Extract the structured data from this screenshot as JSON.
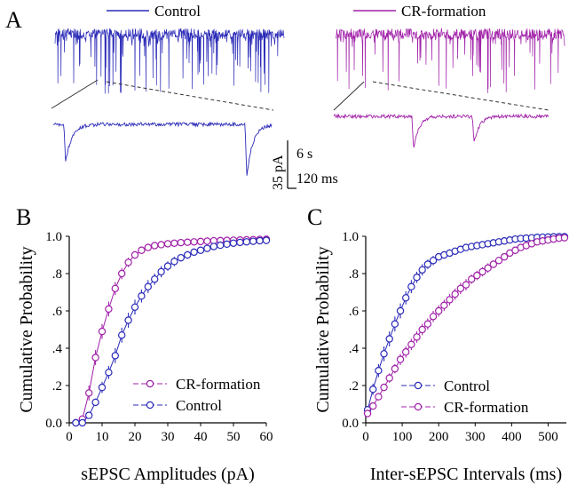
{
  "figure": {
    "panel_a": {
      "label": "A",
      "legend_control": "Control",
      "legend_cr": "CR-formation",
      "scale_amplitude": "35 pA",
      "scale_time_long": "6 s",
      "scale_time_short": "120 ms"
    }
  },
  "colors": {
    "control": "#2a2ab8",
    "cr": "#a020a8",
    "axis": "#000000",
    "zoom_line": "#333333"
  },
  "chart_data": [
    {
      "panel": "B",
      "type": "line",
      "xlabel": "sEPSC Amplitudes (pA)",
      "ylabel": "Cumulative Probability",
      "xlim": [
        0,
        60
      ],
      "ylim": [
        0,
        1.0
      ],
      "xticks": [
        0,
        10,
        20,
        30,
        40,
        50,
        60
      ],
      "yticks": [
        0,
        0.2,
        0.4,
        0.6,
        0.8,
        1.0
      ],
      "ytick_labels": [
        "0.0",
        ".2",
        ".4",
        ".6",
        ".8",
        "1.0"
      ],
      "legend": [
        "CR-formation",
        "Control"
      ],
      "series": [
        {
          "name": "CR-formation",
          "color": "#a020a8",
          "x": [
            2,
            4,
            6,
            8,
            10,
            12,
            14,
            16,
            18,
            20,
            22,
            24,
            26,
            28,
            30,
            32,
            34,
            36,
            38,
            40,
            42,
            44,
            46,
            48,
            50,
            52,
            54,
            56,
            58,
            60
          ],
          "y": [
            0,
            0.02,
            0.16,
            0.35,
            0.49,
            0.61,
            0.72,
            0.8,
            0.86,
            0.9,
            0.925,
            0.94,
            0.95,
            0.955,
            0.96,
            0.963,
            0.966,
            0.968,
            0.97,
            0.972,
            0.974,
            0.976,
            0.977,
            0.978,
            0.979,
            0.98,
            0.981,
            0.982,
            0.983,
            0.984
          ],
          "err": [
            0,
            0.01,
            0.04,
            0.04,
            0.04,
            0.04,
            0.035,
            0.03,
            0.025,
            0.02,
            0.015,
            0.012,
            0.01,
            0.01,
            0.01,
            0.01,
            0.008,
            0.008,
            0.008,
            0.008,
            0.008,
            0.006,
            0.006,
            0.006,
            0.006,
            0.006,
            0.006,
            0.006,
            0.006,
            0.006
          ]
        },
        {
          "name": "Control",
          "color": "#2a2ab8",
          "x": [
            2,
            4,
            6,
            8,
            10,
            12,
            14,
            16,
            18,
            20,
            22,
            24,
            26,
            28,
            30,
            32,
            34,
            36,
            38,
            40,
            42,
            44,
            46,
            48,
            50,
            52,
            54,
            56,
            58,
            60
          ],
          "y": [
            0,
            0,
            0.04,
            0.11,
            0.19,
            0.27,
            0.36,
            0.47,
            0.55,
            0.62,
            0.68,
            0.73,
            0.77,
            0.81,
            0.84,
            0.865,
            0.885,
            0.9,
            0.915,
            0.925,
            0.935,
            0.945,
            0.952,
            0.958,
            0.963,
            0.967,
            0.97,
            0.973,
            0.976,
            0.978
          ],
          "err": [
            0,
            0,
            0.01,
            0.02,
            0.03,
            0.035,
            0.04,
            0.04,
            0.04,
            0.04,
            0.035,
            0.035,
            0.03,
            0.03,
            0.025,
            0.025,
            0.02,
            0.02,
            0.018,
            0.016,
            0.014,
            0.012,
            0.012,
            0.01,
            0.01,
            0.01,
            0.01,
            0.008,
            0.008,
            0.008
          ]
        }
      ]
    },
    {
      "panel": "C",
      "type": "line",
      "xlabel": "Inter-sEPSC Intervals (ms)",
      "ylabel": "Cumulative Probability",
      "xlim": [
        0,
        550
      ],
      "ylim": [
        0,
        1.0
      ],
      "xticks": [
        0,
        100,
        200,
        300,
        400,
        500
      ],
      "yticks": [
        0,
        0.2,
        0.4,
        0.6,
        0.8,
        1.0
      ],
      "ytick_labels": [
        "0.0",
        ".2",
        ".4",
        ".6",
        ".8",
        "1.0"
      ],
      "legend": [
        "Control",
        "CR-formation"
      ],
      "series": [
        {
          "name": "Control",
          "color": "#2a2ab8",
          "x": [
            5,
            20,
            35,
            50,
            65,
            80,
            95,
            110,
            125,
            140,
            155,
            170,
            185,
            200,
            215,
            230,
            245,
            260,
            275,
            290,
            305,
            320,
            335,
            350,
            365,
            380,
            395,
            410,
            425,
            440,
            455,
            470,
            485,
            500,
            515,
            530,
            545
          ],
          "y": [
            0.07,
            0.18,
            0.28,
            0.37,
            0.45,
            0.53,
            0.6,
            0.67,
            0.73,
            0.78,
            0.82,
            0.85,
            0.87,
            0.89,
            0.9,
            0.91,
            0.92,
            0.93,
            0.94,
            0.945,
            0.95,
            0.955,
            0.96,
            0.965,
            0.97,
            0.975,
            0.98,
            0.985,
            0.988,
            0.99,
            0.992,
            0.994,
            0.995,
            0.996,
            0.997,
            0.998,
            0.998
          ],
          "err": [
            0.02,
            0.03,
            0.035,
            0.04,
            0.04,
            0.04,
            0.04,
            0.035,
            0.035,
            0.03,
            0.03,
            0.025,
            0.025,
            0.02,
            0.02,
            0.02,
            0.018,
            0.016,
            0.015,
            0.014,
            0.013,
            0.012,
            0.012,
            0.011,
            0.01,
            0.01,
            0.009,
            0.008,
            0.008,
            0.007,
            0.006,
            0.006,
            0.005,
            0.005,
            0.005,
            0.004,
            0.004
          ]
        },
        {
          "name": "CR-formation",
          "color": "#a020a8",
          "x": [
            5,
            20,
            35,
            50,
            65,
            80,
            95,
            110,
            125,
            140,
            155,
            170,
            185,
            200,
            215,
            230,
            245,
            260,
            275,
            290,
            305,
            320,
            335,
            350,
            365,
            380,
            395,
            410,
            425,
            440,
            455,
            470,
            485,
            500,
            515,
            530,
            545
          ],
          "y": [
            0.05,
            0.09,
            0.14,
            0.19,
            0.24,
            0.29,
            0.34,
            0.38,
            0.42,
            0.46,
            0.5,
            0.53,
            0.57,
            0.6,
            0.63,
            0.66,
            0.69,
            0.72,
            0.74,
            0.77,
            0.79,
            0.81,
            0.83,
            0.85,
            0.87,
            0.89,
            0.91,
            0.925,
            0.94,
            0.95,
            0.96,
            0.97,
            0.975,
            0.98,
            0.985,
            0.99,
            0.992
          ],
          "err": [
            0.01,
            0.015,
            0.02,
            0.02,
            0.025,
            0.025,
            0.03,
            0.03,
            0.03,
            0.03,
            0.03,
            0.03,
            0.03,
            0.03,
            0.03,
            0.03,
            0.03,
            0.03,
            0.03,
            0.025,
            0.025,
            0.025,
            0.025,
            0.02,
            0.02,
            0.02,
            0.02,
            0.018,
            0.016,
            0.015,
            0.014,
            0.012,
            0.01,
            0.01,
            0.008,
            0.007,
            0.006
          ]
        }
      ]
    }
  ]
}
